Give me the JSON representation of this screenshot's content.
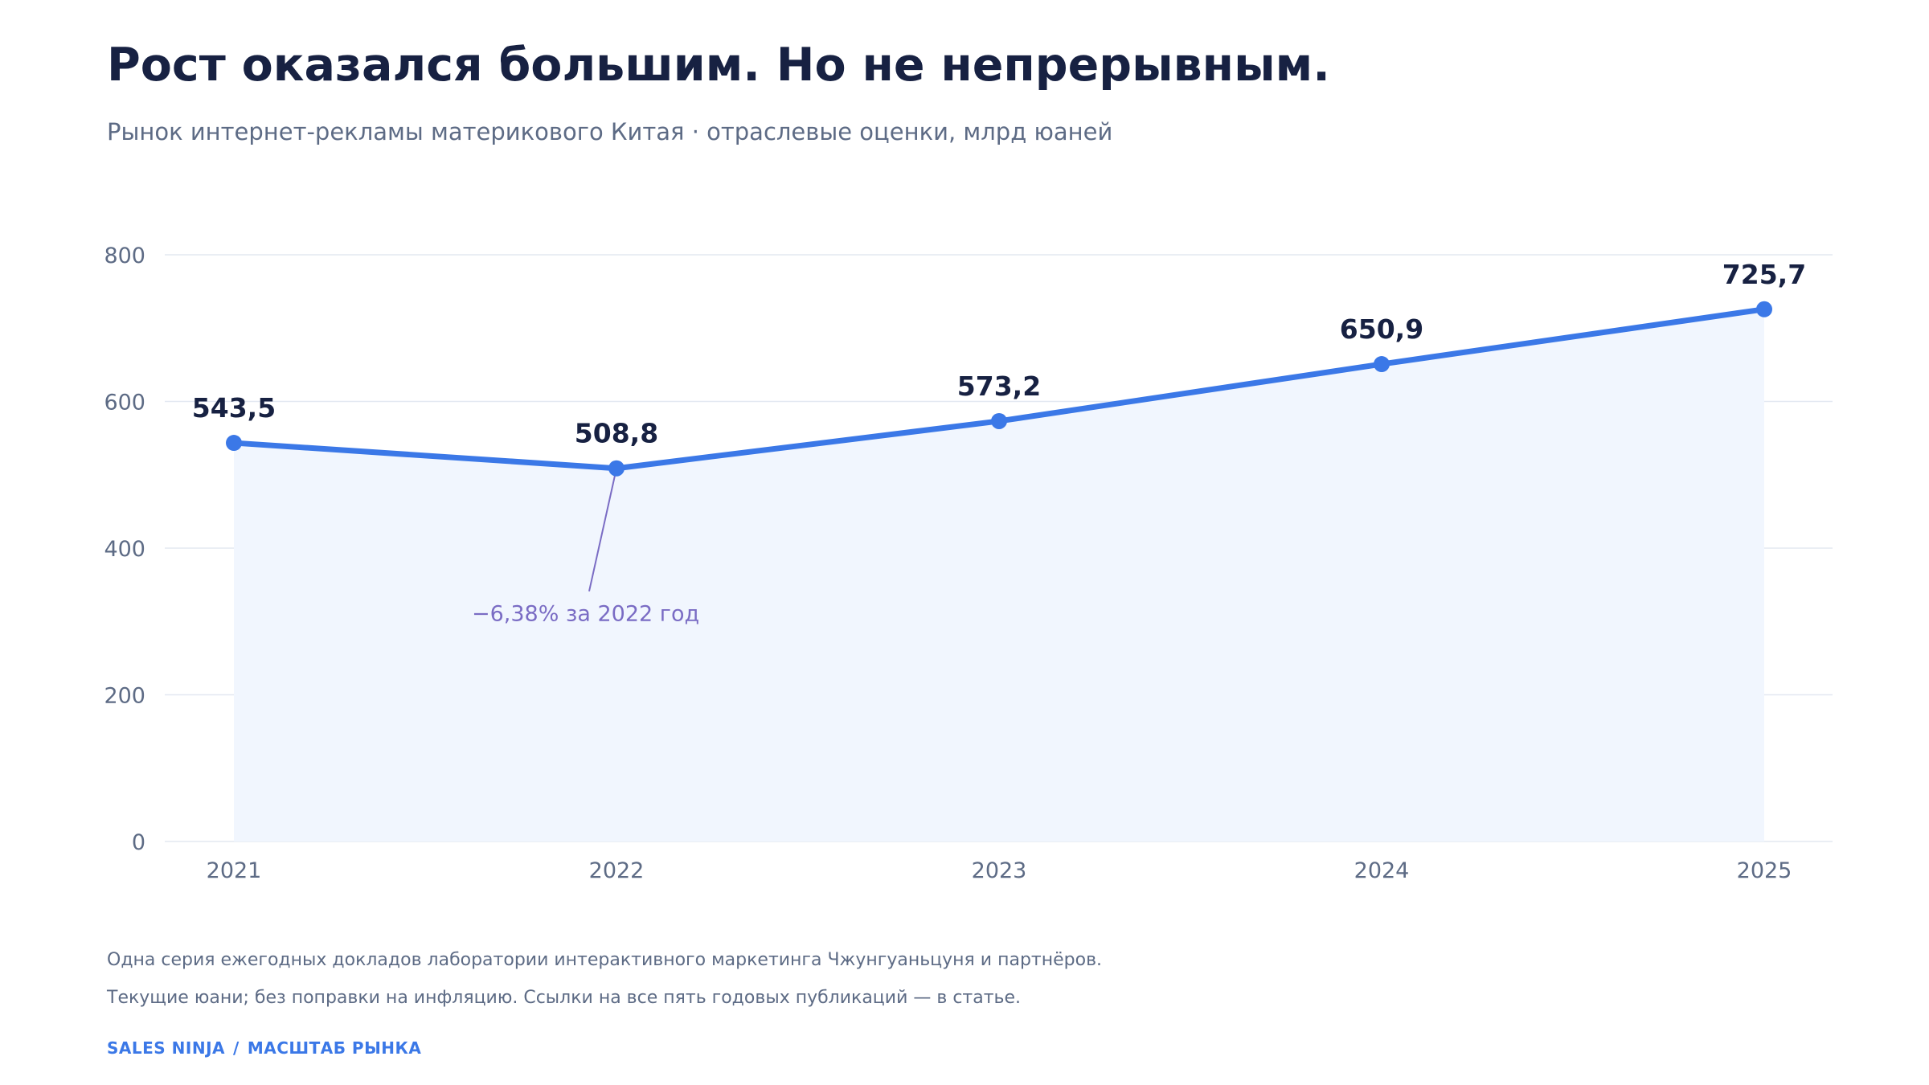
{
  "title": "Рост оказался большим. Но не непрерывным.",
  "subtitle": "Рынок интернет-рекламы материкового Китая · отраслевые оценки, млрд юаней",
  "footer": {
    "note_1": "Одна серия ежегодных докладов лаборатории интерактивного маркетинга Чжунгуаньцуня и партнёров.",
    "note_2": "Текущие юани; без поправки на инфляцию. Ссылки на все пять годовых публикаций — в статье.",
    "brand": "SALES NINJA",
    "brand_separator": "/",
    "section": "МАСШТАБ РЫНКА"
  },
  "chart_data": {
    "type": "area",
    "title": "Рост оказался большим. Но не непрерывным.",
    "subtitle": "Рынок интернет-рекламы материкового Китая · отраслевые оценки, млрд юаней",
    "xlabel": "",
    "ylabel": "",
    "categories": [
      "2021",
      "2022",
      "2023",
      "2024",
      "2025"
    ],
    "values": [
      543.5,
      508.8,
      573.2,
      650.9,
      725.7
    ],
    "value_labels": [
      "543,5",
      "508,8",
      "573,2",
      "650,9",
      "725,7"
    ],
    "ylim": [
      0,
      800
    ],
    "yticks": [
      0,
      200,
      400,
      600,
      800
    ],
    "ytick_labels": [
      "0",
      "200",
      "400",
      "600",
      "800"
    ],
    "grid": true,
    "legend": "none",
    "annotation": {
      "category": "2022",
      "text": "−6,38% за 2022 год"
    },
    "colors": {
      "line": "#3b78e7",
      "area": "#f1f6fe",
      "grid": "#e3e8f1",
      "value_label": "#172142",
      "tick_label": "#5d6b85",
      "annotation": "#7a6cc4"
    }
  }
}
